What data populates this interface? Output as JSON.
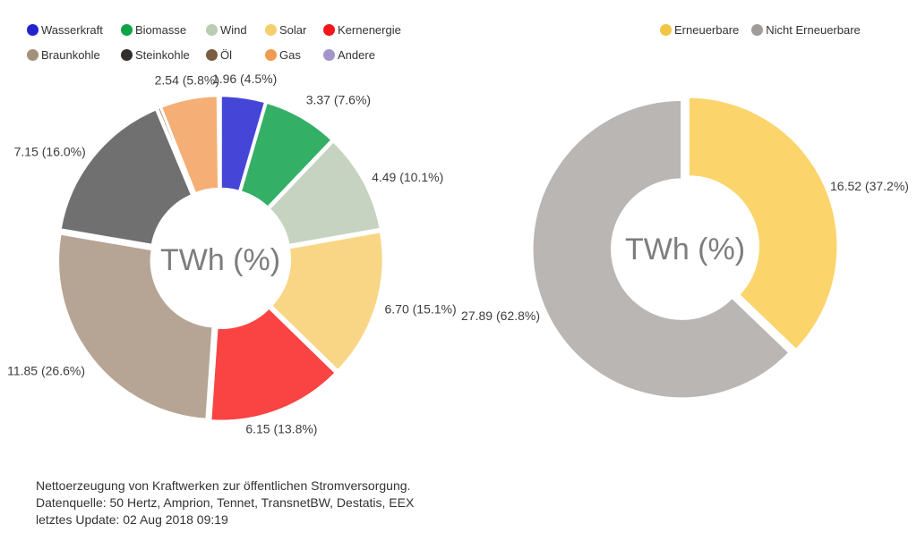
{
  "chart_data": [
    {
      "type": "pie",
      "subtype": "donut",
      "center_label": "TWh (%)",
      "unit": "TWh",
      "legend_position": "top-left",
      "series": [
        {
          "name": "Wasserkraft",
          "value": 1.96,
          "pct": 4.5,
          "label": "1.96 (4.5%)",
          "legend_color": "#2222cf",
          "slice_color": "#4545d8"
        },
        {
          "name": "Biomasse",
          "value": 3.37,
          "pct": 7.6,
          "label": "3.37 (7.6%)",
          "legend_color": "#0fa347",
          "slice_color": "#34b066"
        },
        {
          "name": "Wind",
          "value": 4.49,
          "pct": 10.1,
          "label": "4.49 (10.1%)",
          "legend_color": "#b9cdb2",
          "slice_color": "#c6d3c0"
        },
        {
          "name": "Solar",
          "value": 6.7,
          "pct": 15.1,
          "label": "6.70 (15.1%)",
          "legend_color": "#f5cf6e",
          "slice_color": "#f8d685"
        },
        {
          "name": "Kernenergie",
          "value": 6.15,
          "pct": 13.8,
          "label": "6.15 (13.8%)",
          "legend_color": "#f21616",
          "slice_color": "#fa4343"
        },
        {
          "name": "Braunkohle",
          "value": 11.85,
          "pct": 26.6,
          "label": "11.85 (26.6%)",
          "legend_color": "#a4917d",
          "slice_color": "#b6a595"
        },
        {
          "name": "Steinkohle",
          "value": 7.15,
          "pct": 16.0,
          "label": "7.15 (16.0%)",
          "legend_color": "#332f2d",
          "slice_color": "#707070"
        },
        {
          "name": "Öl",
          "value": null,
          "pct": 0.3,
          "label": "",
          "legend_color": "#7c5d41",
          "slice_color": "#96785c"
        },
        {
          "name": "Gas",
          "value": 2.54,
          "pct": 5.8,
          "label": "2.54 (5.8%)",
          "legend_color": "#f09b4f",
          "slice_color": "#f5af76"
        },
        {
          "name": "Andere",
          "value": null,
          "pct": 0.2,
          "label": "",
          "legend_color": "#a394ca",
          "slice_color": "#b5a9d5"
        }
      ]
    },
    {
      "type": "pie",
      "subtype": "donut",
      "center_label": "TWh (%)",
      "unit": "TWh",
      "legend_position": "top-right",
      "series": [
        {
          "name": "Erneuerbare",
          "value": 16.52,
          "pct": 37.2,
          "label": "16.52 (37.2%)",
          "legend_color": "#f2c546",
          "slice_color": "#fbd46c"
        },
        {
          "name": "Nicht Erneuerbare",
          "value": 27.89,
          "pct": 62.8,
          "label": "27.89 (62.8%)",
          "legend_color": "#a09c9a",
          "slice_color": "#bab6b3"
        }
      ]
    }
  ],
  "footer": {
    "lines": [
      "Nettoerzeugung von Kraftwerken zur öffentlichen Stromversorgung.",
      "Datenquelle: 50 Hertz, Amprion, Tennet, TransnetBW, Destatis, EEX",
      "letztes Update: 02 Aug 2018 09:19"
    ]
  },
  "text_colors": {
    "slice_label": "#3d3d3d",
    "center_label": "#7d7d7d",
    "legend": "#333333",
    "footer": "#333333"
  }
}
